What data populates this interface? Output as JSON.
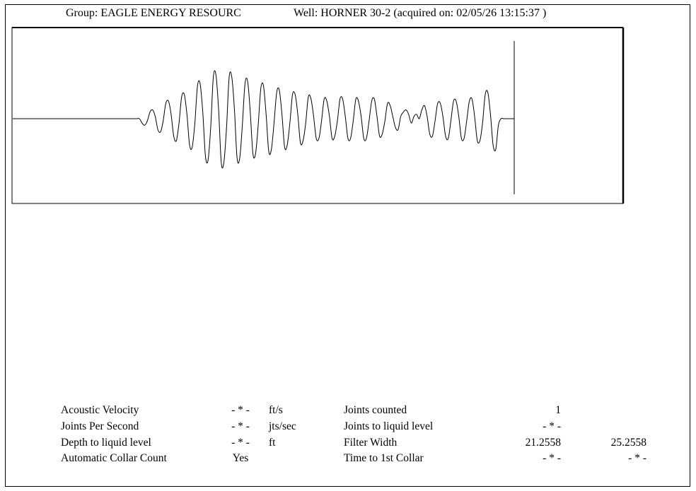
{
  "header": {
    "group": "Group: EAGLE ENERGY RESOURC",
    "well": "Well: HORNER 30-2 (acquired on: 02/05/26 13:15:37 )"
  },
  "chart_data": {
    "type": "line",
    "title": "",
    "xlabel": "",
    "ylabel": "",
    "series": [
      {
        "values": [
          0,
          0,
          0,
          0,
          0,
          0,
          0,
          0,
          0,
          0,
          0,
          0,
          0,
          0,
          0,
          0,
          0,
          0,
          0,
          0,
          0,
          0,
          0,
          0,
          0,
          0,
          0,
          0,
          0,
          0,
          0,
          0,
          0,
          0,
          0,
          0,
          0,
          0,
          0,
          0,
          0,
          0,
          0,
          0,
          0,
          0,
          0,
          0,
          0,
          -0.1,
          -0.15,
          -0.05,
          0.15,
          0.2,
          0.05,
          -0.25,
          -0.3,
          -0.05,
          0.35,
          0.4,
          0.1,
          -0.4,
          -0.5,
          -0.1,
          0.5,
          0.55,
          0.1,
          -0.6,
          -0.65,
          -0.1,
          0.75,
          0.8,
          0.15,
          -0.85,
          -0.95,
          -0.2,
          0.95,
          1.0,
          0.2,
          -1.0,
          -1.0,
          -0.2,
          0.95,
          0.95,
          0.2,
          -0.9,
          -0.9,
          -0.15,
          0.8,
          0.85,
          0.15,
          -0.8,
          -0.8,
          -0.15,
          0.7,
          0.75,
          0.1,
          -0.75,
          -0.7,
          -0.1,
          0.6,
          0.65,
          0.1,
          -0.65,
          -0.6,
          -0.1,
          0.55,
          0.55,
          0.1,
          -0.55,
          -0.5,
          -0.1,
          0.5,
          0.45,
          0.05,
          -0.45,
          -0.45,
          -0.05,
          0.45,
          0.4,
          0.05,
          -0.45,
          -0.4,
          -0.05,
          0.45,
          0.45,
          0.05,
          -0.45,
          -0.45,
          -0.05,
          0.45,
          0.4,
          0.05,
          -0.45,
          -0.45,
          -0.05,
          0.4,
          0.45,
          0.05,
          -0.4,
          -0.35,
          -0.05,
          0.35,
          0.3,
          0.05,
          -0.2,
          -0.25,
          0.05,
          0.15,
          0.2,
          0.1,
          -0.1,
          0.05,
          0.1,
          0.0,
          0.2,
          0.3,
          0.05,
          -0.35,
          -0.4,
          -0.05,
          0.35,
          0.35,
          0.05,
          -0.4,
          -0.45,
          -0.05,
          0.4,
          0.4,
          0.05,
          -0.45,
          -0.45,
          -0.05,
          0.4,
          0.45,
          0.05,
          -0.5,
          -0.5,
          -0.1,
          0.55,
          0.6,
          0.1,
          -0.6,
          -0.7,
          -0.15,
          0.0,
          0.0,
          0,
          0,
          0,
          0
        ]
      }
    ]
  },
  "stats": {
    "left": [
      {
        "label": "Acoustic Velocity",
        "value": "- * -",
        "unit": "ft/s"
      },
      {
        "label": "Joints Per Second",
        "value": "- * -",
        "unit": "jts/sec"
      },
      {
        "label": "Depth to liquid level",
        "value": "- * -",
        "unit": "ft"
      },
      {
        "label": "Automatic Collar Count",
        "value": "Yes",
        "unit": ""
      }
    ],
    "right": [
      {
        "label": "Joints counted",
        "v1": "1",
        "v2": ""
      },
      {
        "label": "Joints to liquid level",
        "v1": "- * -",
        "v2": ""
      },
      {
        "label": "Filter Width",
        "v1": "21.2558",
        "v2": "25.2558"
      },
      {
        "label": "Time to 1st Collar",
        "v1": "- * -",
        "v2": "- * -"
      }
    ]
  }
}
